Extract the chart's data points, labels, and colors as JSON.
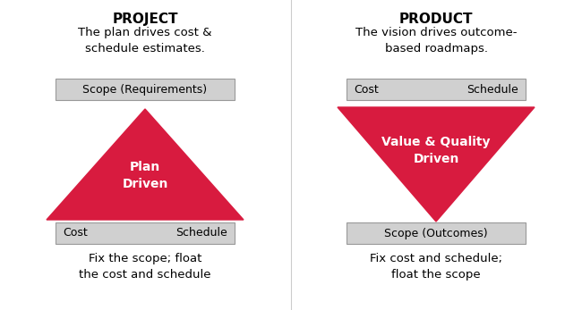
{
  "bg_color": "#ffffff",
  "red_color": "#D81B3F",
  "white": "#ffffff",
  "black": "#000000",
  "box_color": "#D0D0D0",
  "box_edge_color": "#999999",
  "left_title": "PROJECT",
  "left_subtitle": "The plan drives cost &\nschedule estimates.",
  "left_top_box_label": "Scope (Requirements)",
  "left_bottom_box_left": "Cost",
  "left_bottom_box_right": "Schedule",
  "left_triangle_label": "Plan\nDriven",
  "left_bottom_text": "Fix the scope; float\nthe cost and schedule",
  "right_title": "PRODUCT",
  "right_subtitle": "The vision drives outcome-\nbased roadmaps.",
  "right_top_box_left": "Cost",
  "right_top_box_right": "Schedule",
  "right_bottom_box_label": "Scope (Outcomes)",
  "right_triangle_label": "Value & Quality\nDriven",
  "right_bottom_text": "Fix cost and schedule;\nfloat the scope",
  "fig_w": 6.5,
  "fig_h": 3.47,
  "dpi": 100
}
